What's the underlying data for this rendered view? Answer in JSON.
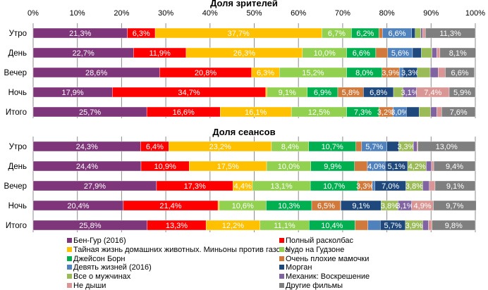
{
  "chart_data": [
    {
      "type": "bar",
      "orientation": "horizontal",
      "stacked": "percent",
      "title": "Доля зрителей",
      "categories": [
        "Утро",
        "День",
        "Вечер",
        "Ночь",
        "Итого"
      ],
      "xlim": [
        0,
        100
      ],
      "xticks": [
        "0%",
        "10%",
        "20%",
        "30%",
        "40%",
        "50%",
        "60%",
        "70%",
        "80%",
        "90%",
        "100%"
      ],
      "grid": true,
      "series": [
        {
          "name": "Бен-Гур (2016)",
          "values": [
            21.3,
            22.7,
            28.6,
            17.9,
            25.7
          ]
        },
        {
          "name": "Полный расколбас",
          "values": [
            6.3,
            11.9,
            20.8,
            34.7,
            16.6
          ]
        },
        {
          "name": "Тайная жизнь домашних животных. Миньоны против газона",
          "values": [
            37.7,
            26.3,
            6.3,
            0.3,
            16.1
          ]
        },
        {
          "name": "Чудо на Гудзоне",
          "values": [
            6.7,
            10.0,
            15.2,
            9.1,
            12.5
          ]
        },
        {
          "name": "Джейсон Борн",
          "values": [
            6.2,
            6.6,
            8.0,
            6.9,
            7.3
          ]
        },
        {
          "name": "Очень плохие мамочки",
          "values": [
            0.8,
            2.7,
            3.9,
            5.8,
            3.2
          ]
        },
        {
          "name": "Девять жизней (2016)",
          "values": [
            6.6,
            5.6,
            0.8,
            0.0,
            3.0
          ]
        },
        {
          "name": "Морган",
          "values": [
            0.8,
            2.0,
            3.3,
            6.8,
            2.9
          ]
        },
        {
          "name": "Все о мужчинах",
          "values": [
            1.3,
            2.4,
            2.9,
            2.1,
            2.6
          ]
        },
        {
          "name": "Механик: Воскрешение",
          "values": [
            0.4,
            1.1,
            1.8,
            3.1,
            1.4
          ]
        },
        {
          "name": "Не дыши",
          "values": [
            0.6,
            0.7,
            1.6,
            7.4,
            1.1
          ]
        },
        {
          "name": "Другие фильмы",
          "values": [
            11.3,
            8.1,
            6.6,
            5.9,
            7.6
          ]
        }
      ]
    },
    {
      "type": "bar",
      "orientation": "horizontal",
      "stacked": "percent",
      "title": "Доля сеансов",
      "categories": [
        "Утро",
        "День",
        "Вечер",
        "Ночь",
        "Итого"
      ],
      "xlim": [
        0,
        100
      ],
      "grid": true,
      "series": [
        {
          "name": "Бен-Гур (2016)",
          "values": [
            24.3,
            24.4,
            27.9,
            20.4,
            25.8
          ]
        },
        {
          "name": "Полный расколбас",
          "values": [
            6.4,
            10.9,
            17.3,
            21.4,
            13.3
          ]
        },
        {
          "name": "Тайная жизнь домашних животных. Миньоны против газона",
          "values": [
            23.2,
            17.5,
            4.4,
            0.3,
            12.2
          ]
        },
        {
          "name": "Чудо на Гудзоне",
          "values": [
            8.4,
            10.0,
            13.1,
            10.6,
            11.1
          ]
        },
        {
          "name": "Джейсон Борн",
          "values": [
            10.7,
            9.9,
            10.7,
            10.3,
            10.4
          ]
        },
        {
          "name": "Очень плохие мамочки",
          "values": [
            1.3,
            2.9,
            3.3,
            6.5,
            2.9
          ]
        },
        {
          "name": "Девять жизней (2016)",
          "values": [
            5.7,
            4.0,
            0.6,
            0.1,
            2.8
          ]
        },
        {
          "name": "Морган",
          "values": [
            2.7,
            5.1,
            7.0,
            9.1,
            5.7
          ]
        },
        {
          "name": "Все о мужчинах",
          "values": [
            3.3,
            4.2,
            3.8,
            3.8,
            3.9
          ]
        },
        {
          "name": "Механик: Воскрешение",
          "values": [
            0.8,
            1.2,
            1.5,
            3.1,
            1.3
          ]
        },
        {
          "name": "Не дыши",
          "values": [
            0.2,
            0.5,
            1.3,
            4.9,
            0.8
          ]
        },
        {
          "name": "Другие фильмы",
          "values": [
            13.0,
            9.4,
            9.1,
            9.7,
            9.8
          ]
        }
      ]
    }
  ],
  "colors": [
    "#7F3579",
    "#FF0000",
    "#FFC000",
    "#92D050",
    "#00B050",
    "#D0793A",
    "#4F81BD",
    "#1F497D",
    "#9BBB59",
    "#8064A2",
    "#D99694",
    "#7F7F7F"
  ],
  "legend": {
    "placement": "bottom",
    "items": [
      "Бен-Гур (2016)",
      "Полный расколбас",
      "Тайная жизнь домашних животных. Миньоны против газона",
      "Чудо на Гудзоне",
      "Джейсон Борн",
      "Очень плохие мамочки",
      "Девять жизней (2016)",
      "Морган",
      "Все о мужчинах",
      "Механик: Воскрешение",
      "Не дыши",
      "Другие фильмы"
    ]
  }
}
